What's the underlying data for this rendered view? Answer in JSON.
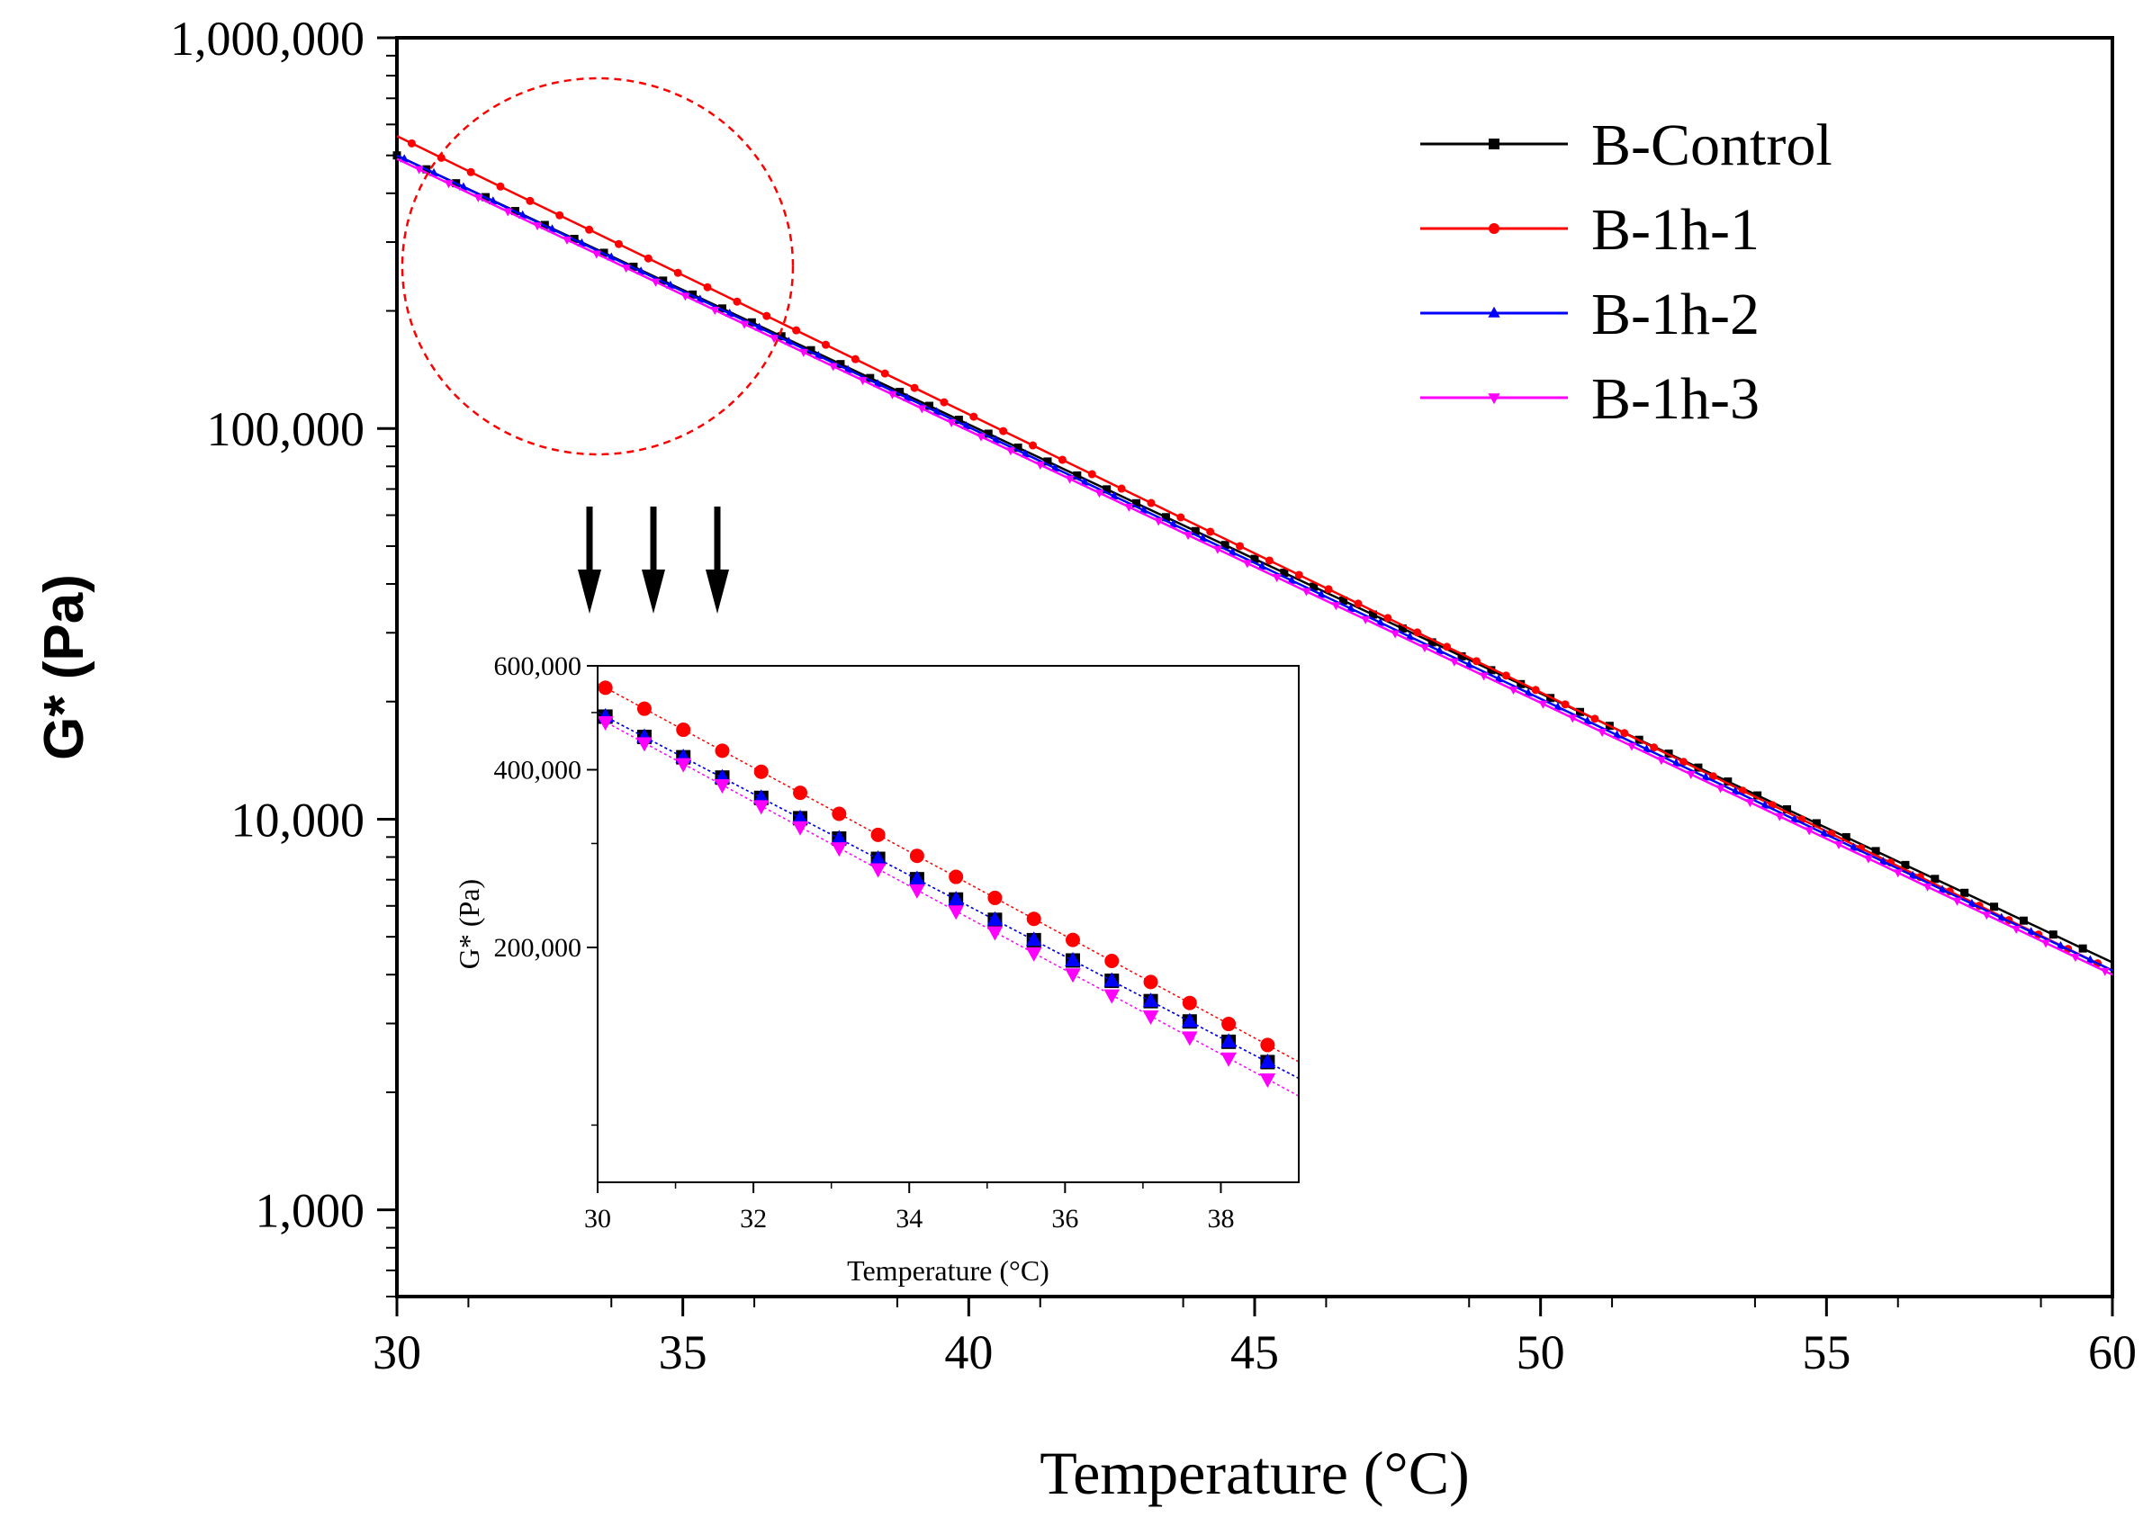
{
  "chart_data": [
    {
      "type": "line",
      "xlabel": "Temperature (°C)",
      "ylabel": "G* (Pa)",
      "xlim": [
        30,
        60
      ],
      "ylim": [
        600,
        1000000
      ],
      "yscale": "log",
      "xticks": [
        30,
        35,
        40,
        45,
        50,
        55,
        60
      ],
      "yticks": [
        1000,
        10000,
        100000,
        1000000
      ],
      "xtick_labels": [
        "30",
        "35",
        "40",
        "45",
        "50",
        "55",
        "60"
      ],
      "ytick_labels": [
        "1,000",
        "10,000",
        "100,000",
        "1,000,000"
      ],
      "legend_position": "top-right",
      "annotation": "dashed circle highlighting 30–37 °C region, enlarged in inset",
      "series": [
        {
          "name": "B-Control",
          "color": "#000000",
          "marker": "square",
          "x_start": 30,
          "x_end": 60,
          "y_start": 500000,
          "y_end": 4300
        },
        {
          "name": "B-1h-1",
          "color": "#ff0000",
          "marker": "circle",
          "x_start": 30,
          "x_end": 60,
          "y_start": 560000,
          "y_end": 4100
        },
        {
          "name": "B-1h-2",
          "color": "#0000ff",
          "marker": "triangle-up",
          "x_start": 30,
          "x_end": 60,
          "y_start": 500000,
          "y_end": 4100
        },
        {
          "name": "B-1h-3",
          "color": "#ff00ff",
          "marker": "triangle-down",
          "x_start": 30,
          "x_end": 60,
          "y_start": 490000,
          "y_end": 4000
        }
      ]
    },
    {
      "type": "scatter",
      "role": "inset",
      "xlabel": "Temperature (°C)",
      "ylabel": "G* (Pa)",
      "xlim": [
        30,
        39
      ],
      "ylim": [
        80000,
        600000
      ],
      "yscale": "log",
      "xticks": [
        30,
        32,
        34,
        36,
        38
      ],
      "yticks": [
        200000,
        400000,
        600000
      ],
      "xtick_labels": [
        "30",
        "32",
        "34",
        "36",
        "38"
      ],
      "ytick_labels": [
        "200,000",
        "400,000",
        "600,000"
      ],
      "series": [
        {
          "name": "B-Control",
          "color": "#000000",
          "x_start": 30,
          "x_end": 39,
          "y_start": 500000,
          "y_end": 120000
        },
        {
          "name": "B-1h-1",
          "color": "#ff0000",
          "x_start": 30,
          "x_end": 39,
          "y_start": 560000,
          "y_end": 128000
        },
        {
          "name": "B-1h-2",
          "color": "#0000ff",
          "x_start": 30,
          "x_end": 39,
          "y_start": 500000,
          "y_end": 120000
        },
        {
          "name": "B-1h-3",
          "color": "#ff00ff",
          "x_start": 30,
          "x_end": 39,
          "y_start": 490000,
          "y_end": 112000
        }
      ]
    }
  ]
}
